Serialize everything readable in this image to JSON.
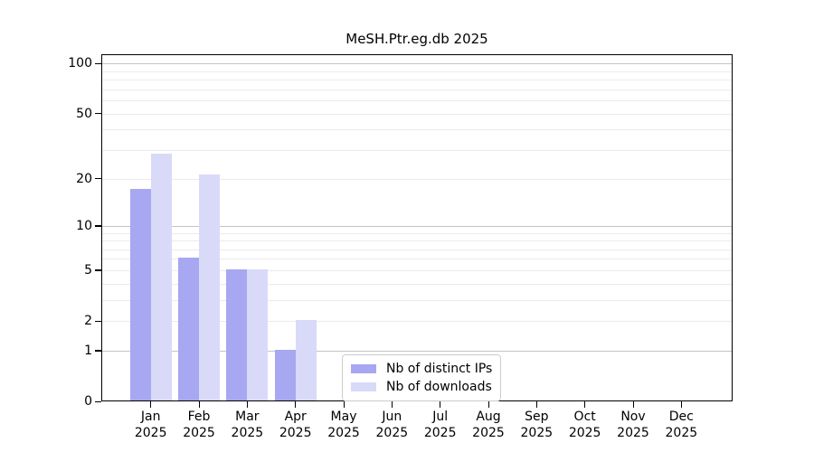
{
  "chart_data": {
    "type": "bar",
    "title": "MeSH.Ptr.eg.db 2025",
    "year": "2025",
    "categories": [
      "Jan",
      "Feb",
      "Mar",
      "Apr",
      "May",
      "Jun",
      "Jul",
      "Aug",
      "Sep",
      "Oct",
      "Nov",
      "Dec"
    ],
    "series": [
      {
        "name": "Nb of distinct IPs",
        "color": "#a7a7f2",
        "values": [
          17,
          6,
          5,
          1,
          0,
          0,
          0,
          0,
          0,
          0,
          0,
          0
        ]
      },
      {
        "name": "Nb of downloads",
        "color": "#d9d9f8",
        "values": [
          28,
          21,
          5,
          2,
          0,
          0,
          0,
          0,
          0,
          0,
          0,
          0
        ]
      }
    ],
    "y_axis": {
      "ticks": [
        0,
        1,
        2,
        5,
        10,
        20,
        50,
        100
      ],
      "scale": "log1p",
      "ylim": [
        0,
        100
      ]
    },
    "x_axis": {
      "tick_label_format": "month-over-year"
    },
    "grid": {
      "major": [
        1,
        10,
        100
      ],
      "minor": [
        2,
        3,
        4,
        5,
        6,
        7,
        8,
        9,
        20,
        30,
        40,
        50,
        60,
        70,
        80,
        90
      ],
      "major_color": "#c4c4c4",
      "minor_color": "#ebebeb"
    },
    "legend": {
      "position": "bottom-center"
    },
    "colors": {
      "axis": "#000000",
      "background": "#ffffff",
      "legend_border": "#cccccc",
      "text": "#000000"
    }
  }
}
